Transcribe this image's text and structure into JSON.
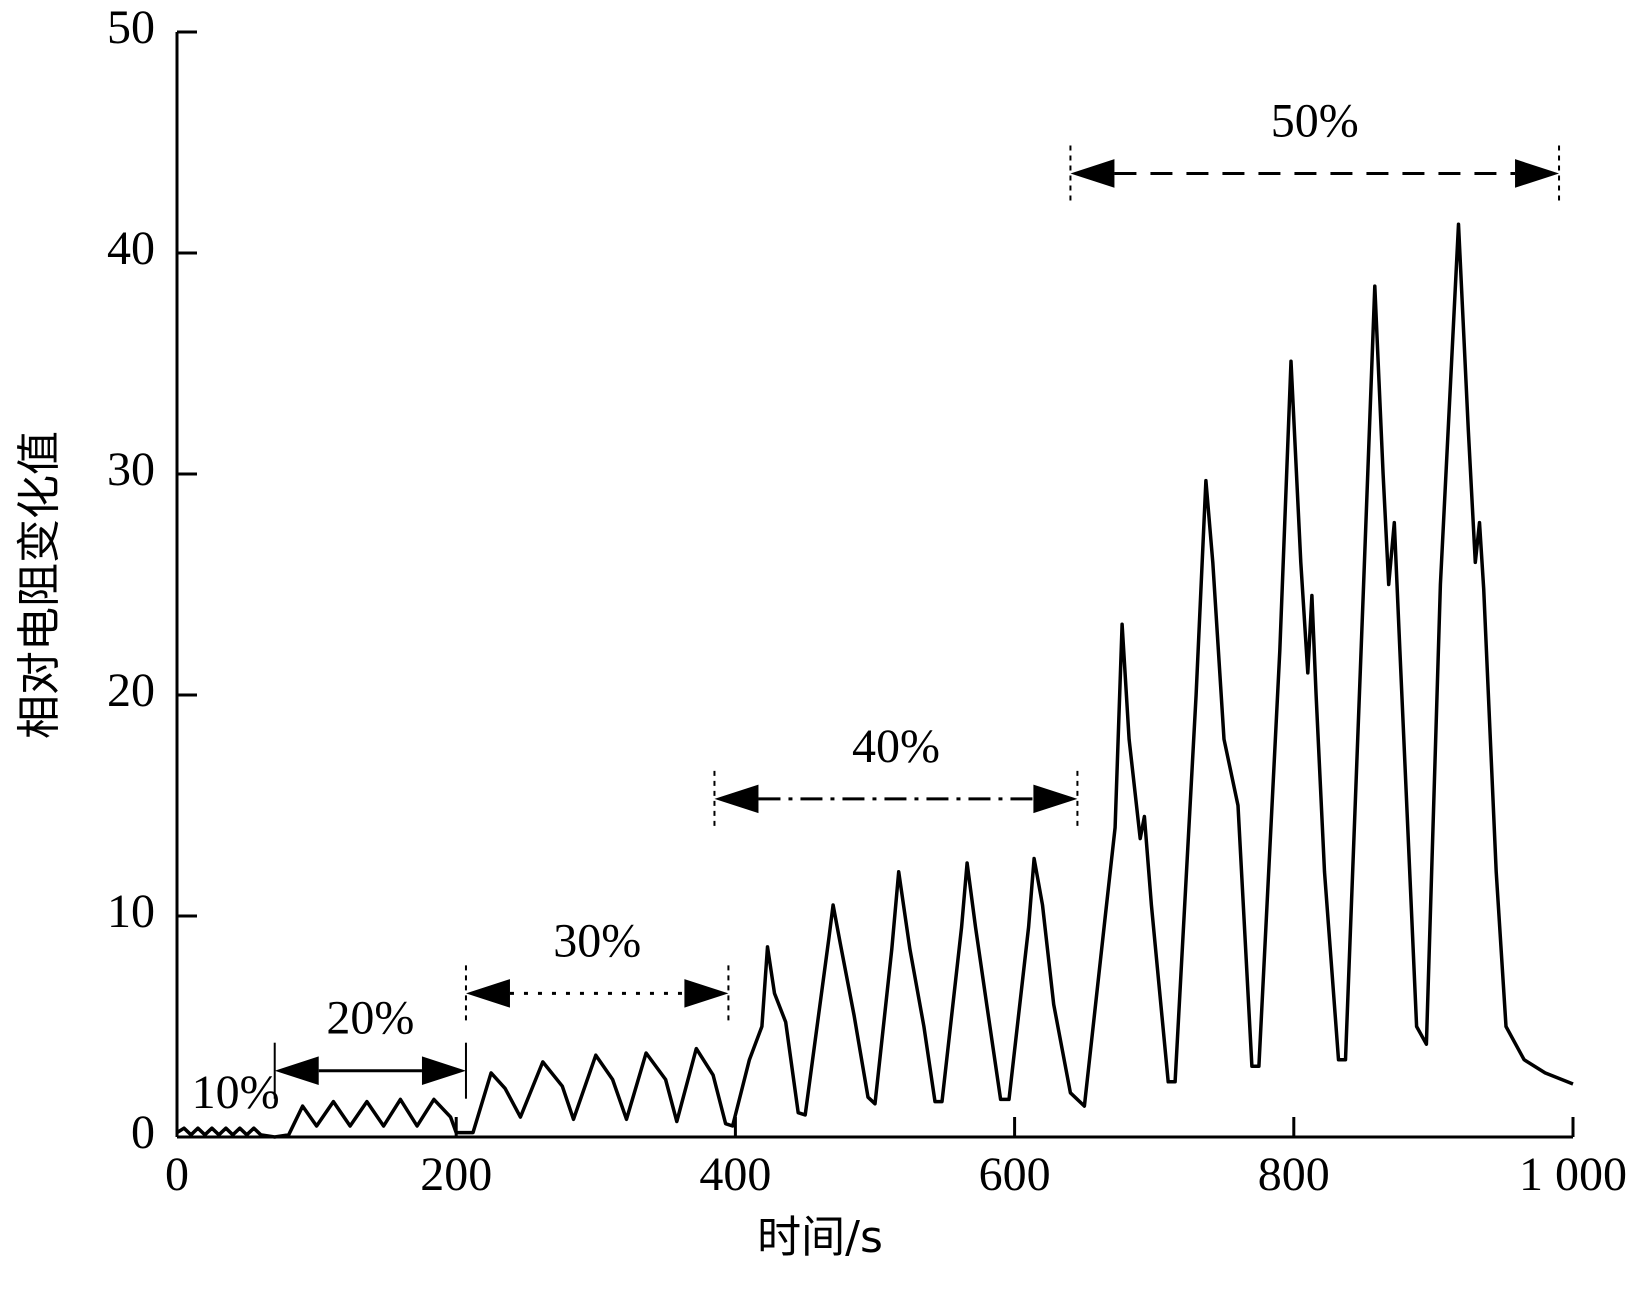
{
  "chart_data": {
    "type": "line",
    "xlabel": "时间/s",
    "ylabel": "相对电阻变化值",
    "xlim": [
      0,
      1000
    ],
    "ylim": [
      0,
      50
    ],
    "xticks": [
      0,
      200,
      400,
      600,
      800,
      {
        "value": 1000,
        "label": "1 000"
      }
    ],
    "yticks": [
      0,
      10,
      20,
      30,
      40,
      50
    ],
    "color": "#000000",
    "x": [
      0,
      5,
      10,
      15,
      20,
      25,
      30,
      35,
      40,
      45,
      50,
      55,
      60,
      70,
      80,
      90,
      100,
      112,
      124,
      136,
      148,
      160,
      172,
      184,
      196,
      200,
      212,
      225,
      235,
      246,
      262,
      276,
      284,
      300,
      312,
      322,
      336,
      350,
      358,
      372,
      384,
      393,
      398,
      410,
      419,
      423,
      428,
      436,
      445,
      450,
      467,
      470,
      475,
      485,
      495,
      500,
      512,
      517,
      525,
      535,
      543,
      548,
      562,
      566,
      572,
      580,
      590,
      596,
      610,
      614,
      620,
      628,
      640,
      650,
      665,
      672,
      677,
      682,
      690,
      693,
      698,
      710,
      715,
      730,
      737,
      742,
      750,
      760,
      770,
      775,
      790,
      798,
      805,
      810,
      813,
      816,
      822,
      832,
      837,
      850,
      858,
      864,
      868,
      872,
      876,
      888,
      895,
      905,
      918,
      925,
      930,
      933,
      936,
      945,
      952,
      965,
      980,
      1000
    ],
    "values": [
      0.2,
      0.4,
      0.1,
      0.4,
      0.1,
      0.4,
      0.1,
      0.4,
      0.1,
      0.4,
      0.1,
      0.4,
      0.1,
      0,
      0.1,
      1.4,
      0.5,
      1.6,
      0.5,
      1.6,
      0.5,
      1.7,
      0.5,
      1.7,
      0.9,
      0.2,
      0.2,
      2.9,
      2.2,
      0.9,
      3.4,
      2.3,
      0.8,
      3.7,
      2.6,
      0.8,
      3.8,
      2.6,
      0.7,
      4.0,
      2.8,
      0.6,
      0.5,
      3.5,
      5.0,
      8.6,
      6.5,
      5.2,
      1.1,
      1.0,
      9.0,
      10.5,
      8.8,
      5.5,
      1.8,
      1.5,
      8.5,
      12.0,
      8.5,
      5.0,
      1.6,
      1.6,
      9.5,
      12.4,
      9.5,
      6.0,
      1.7,
      1.7,
      9.5,
      12.6,
      10.5,
      6.0,
      2.0,
      1.4,
      10.0,
      14.0,
      23.2,
      18.0,
      13.5,
      14.5,
      10.5,
      2.5,
      2.5,
      20.0,
      29.7,
      26.0,
      18.0,
      15.0,
      3.2,
      3.2,
      22.0,
      35.1,
      26.0,
      21.0,
      24.5,
      20.0,
      12.0,
      3.5,
      3.5,
      25.0,
      38.5,
      30.0,
      25.0,
      27.8,
      22.0,
      5.0,
      4.2,
      25.0,
      41.3,
      32.0,
      26.0,
      27.8,
      24.8,
      12.0,
      5.0,
      3.5,
      2.9,
      2.4
    ],
    "annotations": [
      {
        "text": "10%",
        "x": 42,
        "y": 1.8
      },
      {
        "text": "20%",
        "x": [
          70,
          207
        ],
        "y": 3.0,
        "style": "solid"
      },
      {
        "text": "30%",
        "x": [
          207,
          395
        ],
        "y": 6.5,
        "style": "dotted"
      },
      {
        "text": "40%",
        "x": [
          385,
          645
        ],
        "y": 15.3,
        "style": "dashdot"
      },
      {
        "text": "50%",
        "x": [
          640,
          990
        ],
        "y": 43.6,
        "style": "dashed"
      }
    ]
  }
}
